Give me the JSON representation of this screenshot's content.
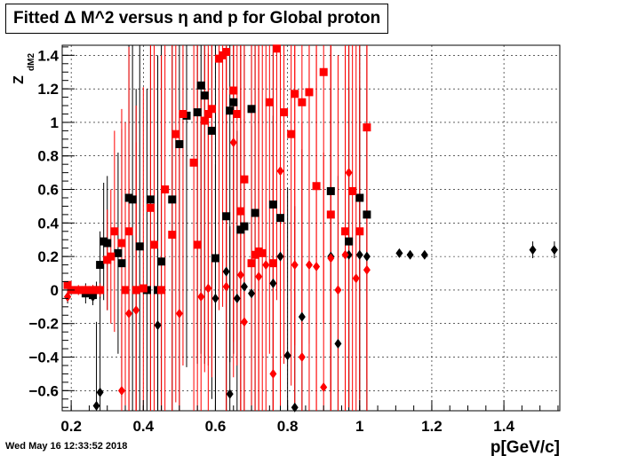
{
  "title": "Fitted Δ M^2 versus η and p for Global proton",
  "timestamp": "Wed May 16 12:33:52 2018",
  "chart_data": {
    "type": "scatter",
    "title": "Fitted Δ M^2 versus η and p for Global proton",
    "xlabel": "p[GeV/c]",
    "ylabel_main": "Z",
    "ylabel_sub": "dM2",
    "xlim": [
      0.175,
      1.555
    ],
    "ylim": [
      -0.72,
      1.46
    ],
    "xticks": [
      0.2,
      0.4,
      0.6,
      0.8,
      1.0,
      1.2,
      1.4
    ],
    "xtick_labels": [
      "0.2",
      "0.4",
      "0.6",
      "0.8",
      "1",
      "1.2",
      "1.4"
    ],
    "yticks": [
      -0.6,
      -0.4,
      -0.2,
      0,
      0.2,
      0.4,
      0.6,
      0.8,
      1.0,
      1.2,
      1.4
    ],
    "ytick_labels": [
      "−0.6",
      "−0.4",
      "−0.2",
      "0",
      "0.2",
      "0.4",
      "0.6",
      "0.8",
      "1",
      "1.2",
      "1.4"
    ],
    "grid": true,
    "colors": {
      "black": "#000000",
      "red": "#ff0000"
    },
    "series": [
      {
        "color": "#000000",
        "marker": "square",
        "points": [
          [
            0.24,
            -0.02,
            0.06
          ],
          [
            0.26,
            -0.03,
            0.06
          ],
          [
            0.27,
            0.0,
            0.05
          ],
          [
            0.28,
            0.15,
            0.2
          ],
          [
            0.29,
            0.29,
            0.35
          ],
          [
            0.3,
            0.28,
            0.4
          ],
          [
            0.33,
            0.22,
            0.6
          ],
          [
            0.34,
            0.16,
            0.8
          ],
          [
            0.36,
            0.55,
            1.6
          ],
          [
            0.37,
            0.54,
            1.6
          ],
          [
            0.38,
            0.0,
            1.2
          ],
          [
            0.39,
            0.26,
            1.3
          ],
          [
            0.41,
            0.0,
            1.2
          ],
          [
            0.42,
            0.54,
            1.4
          ],
          [
            0.44,
            0.0,
            1.4
          ],
          [
            0.45,
            0.17,
            1.5
          ],
          [
            0.48,
            0.54,
            1.6
          ],
          [
            0.5,
            0.87,
            1.6
          ],
          [
            0.52,
            1.04,
            1.5
          ],
          [
            0.55,
            1.06,
            1.5
          ],
          [
            0.56,
            1.22,
            1.6
          ],
          [
            0.57,
            1.16,
            1.6
          ],
          [
            0.59,
            0.95,
            1.6
          ],
          [
            0.6,
            0.19,
            1.5
          ],
          [
            0.63,
            0.44,
            1.6
          ],
          [
            0.64,
            1.07,
            1.5
          ],
          [
            0.65,
            1.12,
            1.5
          ],
          [
            0.67,
            0.36,
            1.6
          ],
          [
            0.68,
            0.38,
            1.6
          ],
          [
            0.7,
            1.08,
            1.5
          ],
          [
            0.71,
            0.46,
            1.5
          ],
          [
            0.76,
            0.51,
            1.5
          ],
          [
            0.78,
            0.43,
            1.5
          ],
          [
            0.92,
            0.59,
            1.2
          ],
          [
            0.97,
            0.29,
            1.2
          ],
          [
            1.0,
            0.55,
            1.2
          ],
          [
            1.02,
            0.45,
            1.2
          ]
        ]
      },
      {
        "color": "#000000",
        "marker": "diamond",
        "points": [
          [
            0.19,
            -0.04,
            0.04
          ],
          [
            0.26,
            -0.04,
            0.05
          ],
          [
            0.27,
            -0.69,
            0.5
          ],
          [
            0.28,
            -0.61,
            0.6
          ],
          [
            0.44,
            -0.21,
            0.8
          ],
          [
            0.6,
            -0.05,
            0.8
          ],
          [
            0.63,
            0.11,
            0.9
          ],
          [
            0.64,
            -0.62,
            1.0
          ],
          [
            0.66,
            -0.05,
            1.0
          ],
          [
            0.68,
            0.02,
            1.0
          ],
          [
            0.7,
            -0.02,
            1.0
          ],
          [
            0.76,
            0.04,
            1.0
          ],
          [
            0.78,
            0.2,
            1.0
          ],
          [
            0.8,
            -0.39,
            1.0
          ],
          [
            0.82,
            -0.7,
            1.2
          ],
          [
            0.84,
            -0.16,
            1.0
          ],
          [
            0.92,
            0.2,
            1.0
          ],
          [
            0.94,
            -0.32,
            1.0
          ],
          [
            0.97,
            0.21,
            1.0
          ],
          [
            1.0,
            0.21,
            1.0
          ],
          [
            1.02,
            0.2,
            1.0
          ],
          [
            1.11,
            0.22,
            0.01
          ],
          [
            1.14,
            0.21,
            0.01
          ],
          [
            1.18,
            0.21,
            0.01
          ],
          [
            1.48,
            0.24,
            0.05
          ],
          [
            1.54,
            0.24,
            0.05
          ]
        ]
      },
      {
        "color": "#ff0000",
        "marker": "square",
        "points": [
          [
            0.19,
            0.03,
            0.02
          ],
          [
            0.2,
            0.0,
            0.02
          ],
          [
            0.22,
            0.0,
            0.03
          ],
          [
            0.24,
            0.0,
            0.03
          ],
          [
            0.26,
            0.0,
            0.03
          ],
          [
            0.28,
            0.0,
            0.04
          ],
          [
            0.3,
            0.18,
            0.3
          ],
          [
            0.31,
            0.2,
            0.4
          ],
          [
            0.32,
            0.35,
            0.6
          ],
          [
            0.34,
            0.28,
            0.8
          ],
          [
            0.35,
            0.0,
            1.0
          ],
          [
            0.36,
            0.35,
            1.1
          ],
          [
            0.38,
            0.0,
            1.1
          ],
          [
            0.4,
            0.01,
            1.2
          ],
          [
            0.42,
            0.49,
            1.4
          ],
          [
            0.43,
            0.27,
            1.5
          ],
          [
            0.45,
            0.0,
            1.4
          ],
          [
            0.46,
            0.6,
            1.5
          ],
          [
            0.48,
            0.33,
            1.5
          ],
          [
            0.49,
            0.93,
            1.6
          ],
          [
            0.51,
            1.05,
            1.5
          ],
          [
            0.54,
            0.76,
            1.6
          ],
          [
            0.55,
            0.27,
            1.6
          ],
          [
            0.57,
            1.01,
            1.5
          ],
          [
            0.58,
            1.05,
            1.5
          ],
          [
            0.59,
            1.08,
            1.6
          ],
          [
            0.61,
            1.38,
            1.5
          ],
          [
            0.62,
            1.4,
            1.5
          ],
          [
            0.63,
            1.42,
            1.5
          ],
          [
            0.65,
            1.19,
            1.5
          ],
          [
            0.66,
            1.05,
            1.5
          ],
          [
            0.67,
            0.47,
            1.5
          ],
          [
            0.68,
            0.66,
            1.5
          ],
          [
            0.7,
            0.16,
            1.5
          ],
          [
            0.71,
            0.21,
            1.5
          ],
          [
            0.72,
            0.23,
            1.5
          ],
          [
            0.73,
            0.22,
            1.5
          ],
          [
            0.75,
            1.12,
            1.5
          ],
          [
            0.76,
            0.16,
            1.5
          ],
          [
            0.77,
            1.44,
            1.5
          ],
          [
            0.79,
            1.06,
            1.5
          ],
          [
            0.81,
            0.93,
            1.5
          ],
          [
            0.82,
            1.17,
            1.5
          ],
          [
            0.84,
            1.12,
            1.5
          ],
          [
            0.86,
            1.18,
            1.5
          ],
          [
            0.88,
            0.62,
            1.5
          ],
          [
            0.9,
            1.3,
            1.5
          ],
          [
            0.92,
            0.45,
            1.5
          ],
          [
            0.96,
            0.35,
            1.5
          ],
          [
            0.98,
            0.59,
            1.5
          ],
          [
            1.0,
            0.35,
            1.5
          ],
          [
            1.02,
            0.97,
            1.5
          ]
        ]
      },
      {
        "color": "#ff0000",
        "marker": "diamond",
        "points": [
          [
            0.19,
            -0.04,
            0.03
          ],
          [
            0.34,
            -0.6,
            0.5
          ],
          [
            0.36,
            -0.14,
            0.8
          ],
          [
            0.38,
            -0.12,
            1.0
          ],
          [
            0.5,
            -0.14,
            1.2
          ],
          [
            0.56,
            -0.04,
            1.2
          ],
          [
            0.58,
            0.01,
            1.4
          ],
          [
            0.63,
            0.02,
            1.4
          ],
          [
            0.65,
            0.88,
            1.4
          ],
          [
            0.67,
            0.09,
            1.4
          ],
          [
            0.68,
            -0.19,
            1.4
          ],
          [
            0.72,
            0.08,
            1.4
          ],
          [
            0.74,
            0.15,
            1.4
          ],
          [
            0.76,
            -0.5,
            1.4
          ],
          [
            0.78,
            0.71,
            1.4
          ],
          [
            0.82,
            0.15,
            1.4
          ],
          [
            0.84,
            -0.4,
            1.4
          ],
          [
            0.86,
            0.15,
            1.4
          ],
          [
            0.88,
            0.14,
            1.4
          ],
          [
            0.9,
            -0.58,
            1.4
          ],
          [
            0.92,
            0.19,
            1.4
          ],
          [
            0.94,
            0.0,
            1.4
          ],
          [
            0.96,
            0.21,
            1.4
          ],
          [
            0.97,
            0.7,
            1.4
          ],
          [
            0.99,
            0.07,
            1.4
          ],
          [
            1.02,
            0.12,
            1.4
          ]
        ]
      }
    ]
  }
}
